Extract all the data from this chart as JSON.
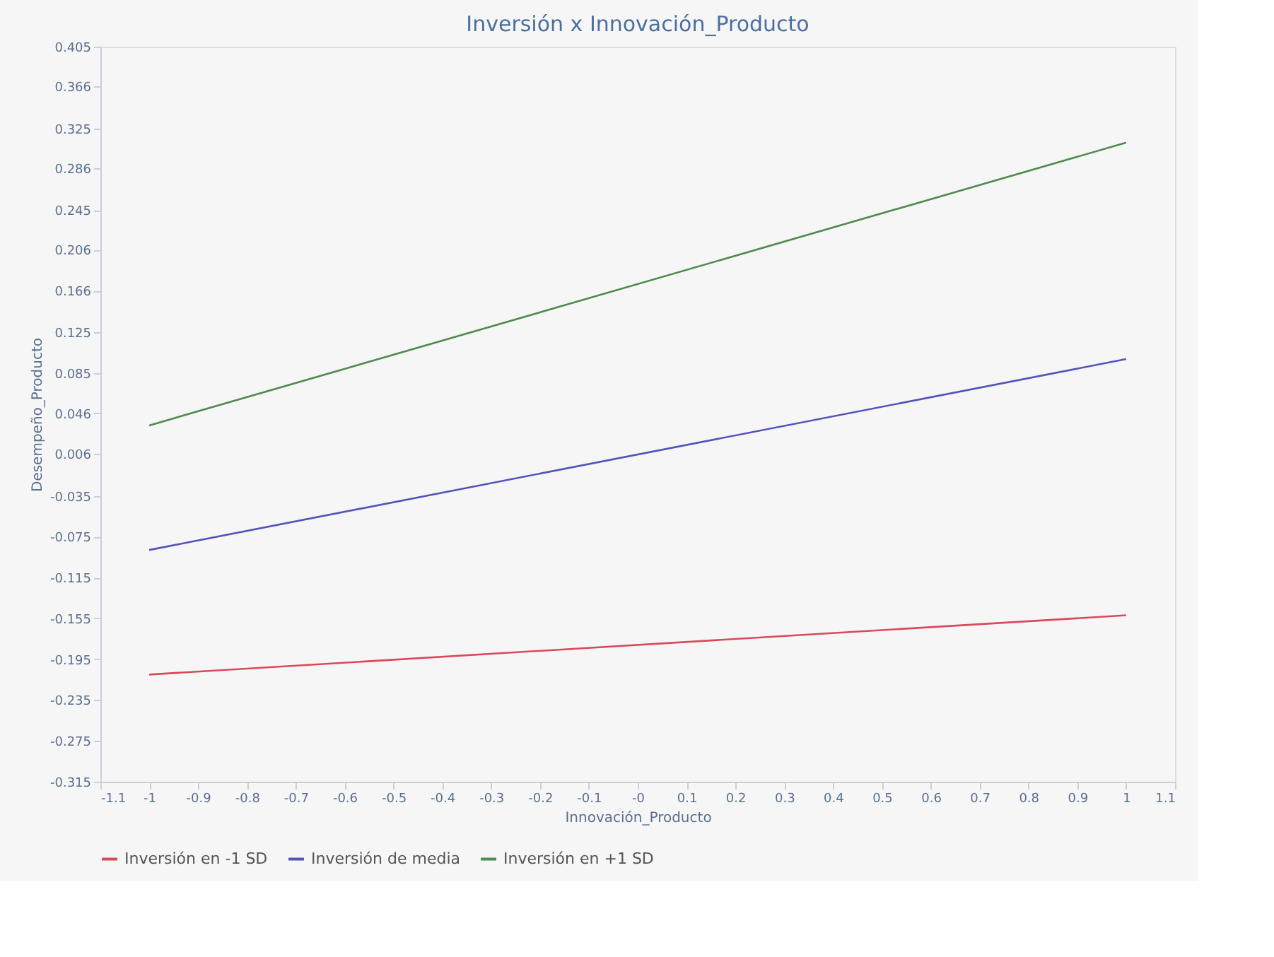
{
  "chart_data": {
    "type": "line",
    "title": "Inversión x Innovación_Producto",
    "xlabel": "Innovación_Producto",
    "ylabel": "Desempeño_Producto",
    "x": [
      -1,
      1
    ],
    "series": [
      {
        "name": "Inversión en -1 SD",
        "color": "#d9495a",
        "values": [
          -0.21,
          -0.152
        ]
      },
      {
        "name": "Inversión de media",
        "color": "#5454b8",
        "values": [
          -0.088,
          0.099
        ]
      },
      {
        "name": "Inversión en +1 SD",
        "color": "#4f8a4f",
        "values": [
          0.034,
          0.311
        ]
      }
    ],
    "xlim": [
      -1.1,
      1.1
    ],
    "xticks": [
      -1.1,
      -1,
      -0.9,
      -0.8,
      -0.7,
      -0.6,
      -0.5,
      -0.4,
      -0.3,
      -0.2,
      -0.1,
      {
        "value": 0,
        "label": "-0"
      },
      0.1,
      0.2,
      0.3,
      0.4,
      0.5,
      0.6,
      0.7,
      0.8,
      0.9,
      1,
      1.1
    ],
    "ylim": [
      -0.315,
      0.405
    ],
    "yticks": [
      -0.315,
      -0.275,
      -0.235,
      -0.195,
      -0.155,
      -0.115,
      -0.075,
      -0.035,
      0.006,
      0.046,
      0.085,
      0.125,
      0.166,
      0.206,
      0.245,
      0.286,
      0.325,
      0.366,
      0.405
    ],
    "grid": false,
    "legend": "bottom",
    "marker": "none",
    "line_style": "solid"
  }
}
